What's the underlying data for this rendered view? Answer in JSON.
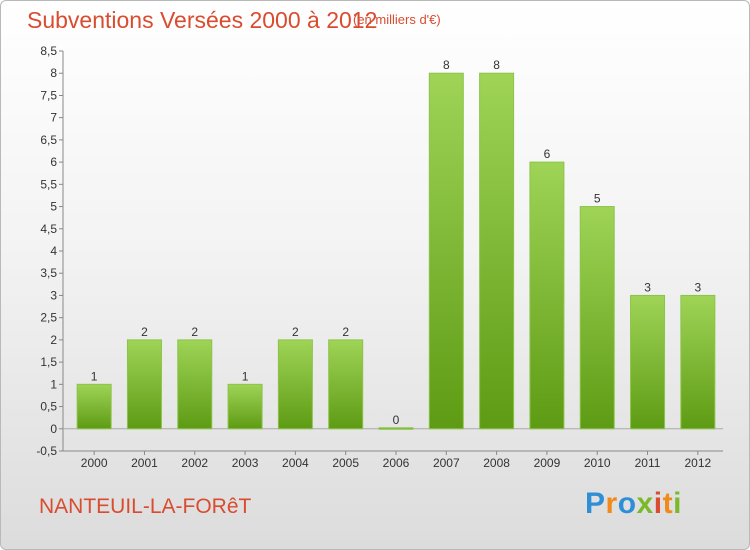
{
  "header": {
    "title": "Subventions Versées 2000 à 2012",
    "unit": "(en milliers d'€)"
  },
  "footer": {
    "commune": "NANTEUIL-LA-FORêT",
    "brand_letters": [
      "P",
      "r",
      "o",
      "x",
      "i",
      "t",
      "i"
    ]
  },
  "colors": {
    "text_accent": "#d94c2f",
    "bar_top": "#9fd457",
    "bar_bottom": "#5e9b14",
    "brand_letters": [
      "#2f8fd6",
      "#f08a1c",
      "#2f8fd6",
      "#7ab929",
      "#d94c2f",
      "#f08a1c",
      "#7ab929"
    ]
  },
  "chart_data": {
    "type": "bar",
    "title": "Subventions Versées 2000 à 2012",
    "subtitle": "(en milliers d'€)",
    "categories": [
      "2000",
      "2001",
      "2002",
      "2003",
      "2004",
      "2005",
      "2006",
      "2007",
      "2008",
      "2009",
      "2010",
      "2011",
      "2012"
    ],
    "values": [
      1,
      2,
      2,
      1,
      2,
      2,
      0,
      8,
      8,
      6,
      5,
      3,
      3
    ],
    "ylim": [
      -0.5,
      8.5
    ],
    "yticks": [
      "-0,5",
      "0",
      "0,5",
      "1",
      "1,5",
      "2",
      "2,5",
      "3",
      "3,5",
      "4",
      "4,5",
      "5",
      "5,5",
      "6",
      "6,5",
      "7",
      "7,5",
      "8",
      "8,5"
    ],
    "grid": false
  }
}
